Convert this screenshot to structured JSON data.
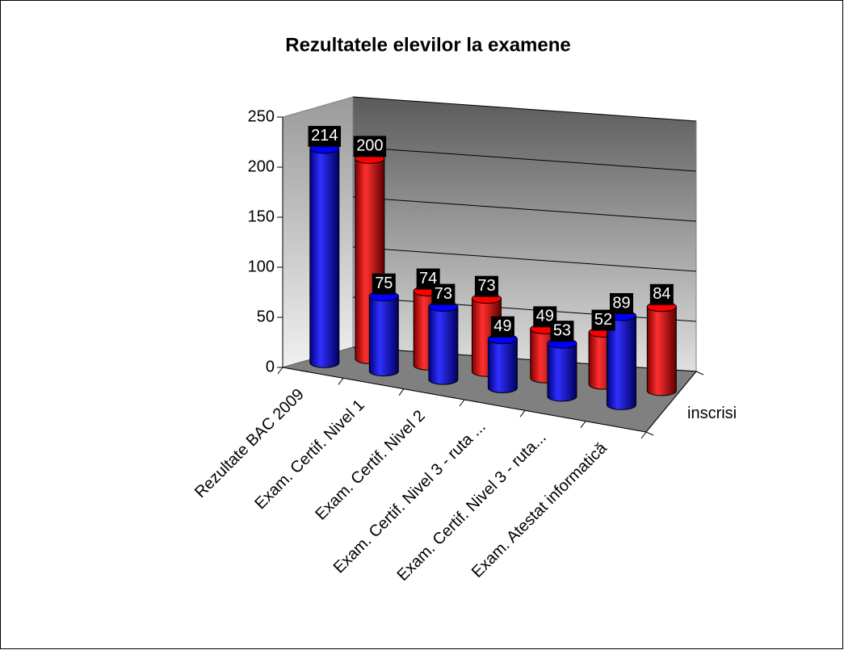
{
  "chart_data": {
    "type": "bar3d",
    "title": "Rezultatele elevilor la examene",
    "categories": [
      "Rezultate BAC 2009",
      "Exam. Certif. Nivel 1",
      "Exam. Certif. Nivel 2",
      "Exam. Certif. Nivel 3 - ruta ...",
      "Exam. Certif. Nivel 3 - ruta...",
      "Exam. Atestat informatică"
    ],
    "series": [
      {
        "color": "#0000ff",
        "values": [
          214,
          75,
          73,
          49,
          53,
          89
        ]
      },
      {
        "color": "#ff0000",
        "values": [
          200,
          74,
          73,
          49,
          52,
          84
        ]
      }
    ],
    "depth_labels": [
      "inscrisi"
    ],
    "ylim": [
      0,
      250
    ],
    "yticks": [
      0,
      50,
      100,
      150,
      200,
      250
    ],
    "grid": true
  }
}
